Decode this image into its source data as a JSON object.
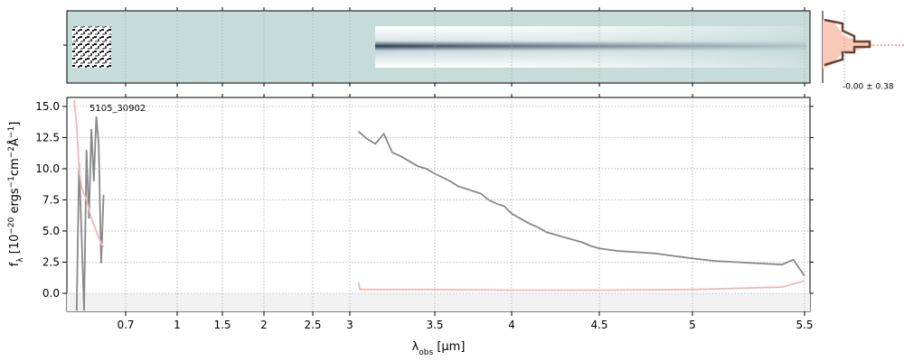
{
  "chart_data": {
    "type": "line",
    "annotation": "5105_30902",
    "stats_label": "-0.00 ± 0.38",
    "xlabel": [
      {
        "text": "λ"
      },
      {
        "text": "obs",
        "shift": "sub"
      },
      {
        "text": " [μm]"
      }
    ],
    "ylabel": [
      {
        "text": "f"
      },
      {
        "text": "λ",
        "shift": "sub"
      },
      {
        "text": " [10"
      },
      {
        "text": "−20",
        "shift": "sup"
      },
      {
        "text": " ergs"
      },
      {
        "text": "−1",
        "shift": "sup"
      },
      {
        "text": "cm"
      },
      {
        "text": "−2",
        "shift": "sup"
      },
      {
        "text": "Å"
      },
      {
        "text": "−1",
        "shift": "sup"
      },
      {
        "text": "]"
      }
    ],
    "xlim": [
      0.58,
      5.52
    ],
    "xticks": [
      0.7,
      1.0,
      1.5,
      2.0,
      2.5,
      3.0,
      3.5,
      4.0,
      4.5,
      5.0,
      5.5
    ],
    "ylim": [
      -1.45,
      15.72
    ],
    "yticks": [
      0.0,
      2.5,
      5.0,
      7.5,
      10.0,
      12.5,
      15.0
    ],
    "grid": true,
    "series": [
      {
        "color": "#888888",
        "x": [
          0.6,
          0.605,
          0.61,
          0.615,
          0.62,
          0.625,
          0.63,
          0.635,
          0.64,
          0.645,
          0.65,
          0.655
        ],
        "values": [
          -1.4,
          10.5,
          4.6,
          -1.4,
          11.5,
          6.0,
          13.2,
          9.0,
          14.2,
          12.0,
          2.4,
          7.9
        ]
      },
      {
        "color": "#888888",
        "x": [
          3.05,
          3.1,
          3.15,
          3.2,
          3.25,
          3.3,
          3.35,
          3.4,
          3.45,
          3.5,
          3.55,
          3.6,
          3.65,
          3.7,
          3.75,
          3.8,
          3.85,
          3.9,
          3.95,
          4.0,
          4.05,
          4.1,
          4.15,
          4.2,
          4.25,
          4.3,
          4.35,
          4.4,
          4.45,
          4.5,
          4.6,
          4.7,
          4.8,
          4.9,
          5.0,
          5.1,
          5.2,
          5.3,
          5.4,
          5.45,
          5.5
        ],
        "values": [
          13.0,
          12.4,
          12.0,
          12.8,
          11.3,
          11.0,
          10.6,
          10.2,
          10.0,
          9.6,
          9.3,
          9.0,
          8.6,
          8.4,
          8.2,
          8.0,
          7.5,
          7.2,
          7.0,
          6.4,
          6.0,
          5.6,
          5.3,
          4.9,
          4.7,
          4.5,
          4.3,
          4.1,
          3.8,
          3.6,
          3.4,
          3.3,
          3.2,
          3.0,
          2.8,
          2.6,
          2.5,
          2.4,
          2.3,
          2.7,
          1.4
        ]
      },
      {
        "color": "#f4b6b6",
        "x": [
          0.595,
          0.6,
          0.605,
          0.61,
          0.62,
          0.63,
          0.64,
          0.65,
          0.655
        ],
        "values": [
          15.5,
          13.5,
          10.0,
          8.5,
          7.5,
          6.0,
          5.0,
          4.0,
          3.7
        ]
      },
      {
        "color": "#f4b6b6",
        "x": [
          3.05,
          3.06,
          3.5,
          4.0,
          4.5,
          5.0,
          5.4,
          5.5
        ],
        "values": [
          0.9,
          0.3,
          0.3,
          0.25,
          0.25,
          0.3,
          0.5,
          1.0
        ]
      }
    ]
  }
}
